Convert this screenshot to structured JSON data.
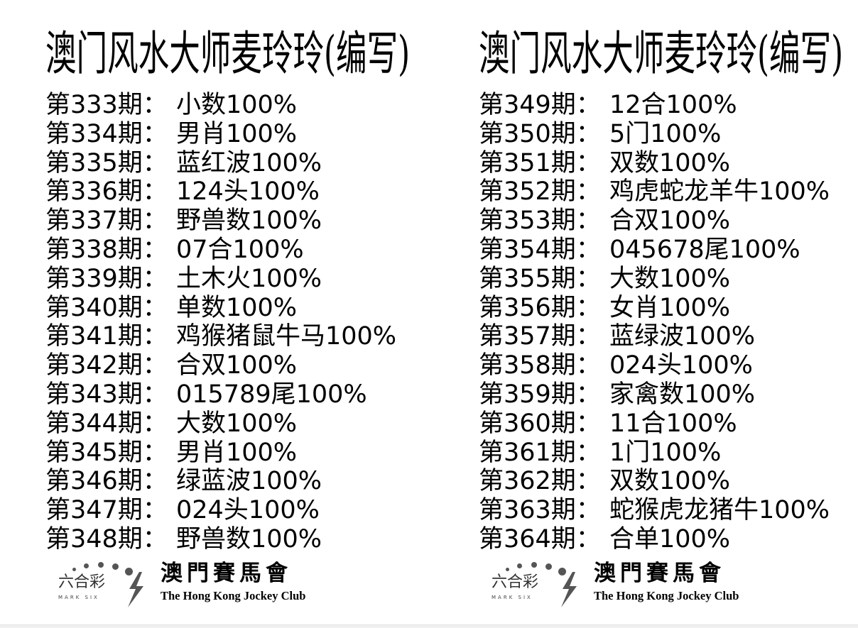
{
  "columns": [
    {
      "title": "澳门风水大师麦玲玲(编写)",
      "rows": [
        {
          "period": "第333期：",
          "value": "小数100%"
        },
        {
          "period": "第334期：",
          "value": "男肖100%"
        },
        {
          "period": "第335期：",
          "value": "蓝红波100%"
        },
        {
          "period": "第336期：",
          "value": "124头100%"
        },
        {
          "period": "第337期：",
          "value": "野兽数100%"
        },
        {
          "period": "第338期：",
          "value": "07合100%"
        },
        {
          "period": "第339期：",
          "value": "土木火100%"
        },
        {
          "period": "第340期：",
          "value": "单数100%"
        },
        {
          "period": "第341期：",
          "value": "鸡猴猪鼠牛马100%"
        },
        {
          "period": "第342期：",
          "value": "合双100%"
        },
        {
          "period": "第343期：",
          "value": "015789尾100%"
        },
        {
          "period": "第344期：",
          "value": "大数100%"
        },
        {
          "period": "第345期：",
          "value": "男肖100%"
        },
        {
          "period": "第346期：",
          "value": "绿蓝波100%"
        },
        {
          "period": "第347期：",
          "value": "024头100%"
        },
        {
          "period": "第348期：",
          "value": "野兽数100%"
        }
      ]
    },
    {
      "title": "澳门风水大师麦玲玲(编写)",
      "rows": [
        {
          "period": "第349期：",
          "value": "12合100%"
        },
        {
          "period": "第350期：",
          "value": "5门100%"
        },
        {
          "period": "第351期：",
          "value": "双数100%"
        },
        {
          "period": "第352期：",
          "value": "鸡虎蛇龙羊牛100%"
        },
        {
          "period": "第353期：",
          "value": "合双100%"
        },
        {
          "period": "第354期：",
          "value": "045678尾100%"
        },
        {
          "period": "第355期：",
          "value": "大数100%"
        },
        {
          "period": "第356期：",
          "value": "女肖100%"
        },
        {
          "period": "第357期：",
          "value": "蓝绿波100%"
        },
        {
          "period": "第358期：",
          "value": "024头100%"
        },
        {
          "period": "第359期：",
          "value": "家禽数100%"
        },
        {
          "period": "第360期：",
          "value": "11合100%"
        },
        {
          "period": "第361期：",
          "value": "1门100%"
        },
        {
          "period": "第362期：",
          "value": "双数100%"
        },
        {
          "period": "第363期：",
          "value": "蛇猴虎龙猪牛100%"
        },
        {
          "period": "第364期：",
          "value": "合单100%"
        }
      ]
    }
  ],
  "logo": {
    "mark_six_zh": "六合彩",
    "mark_six_en": "MARK SIX",
    "club_zh": "澳門賽馬會",
    "club_en": "The Hong Kong Jockey Club"
  }
}
